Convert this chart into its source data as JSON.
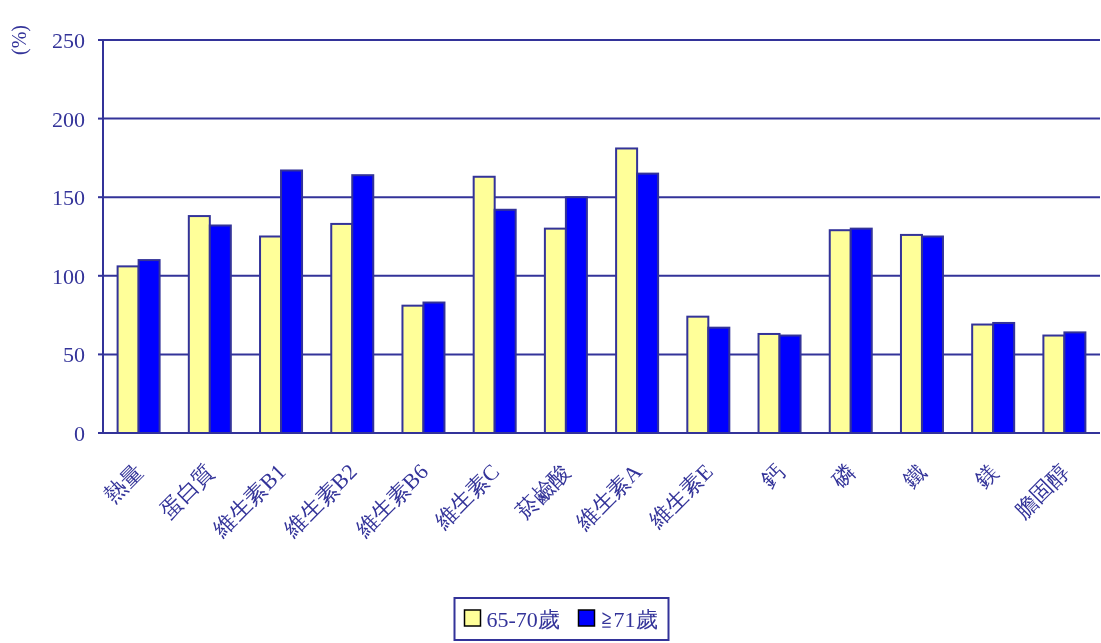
{
  "chart_data": {
    "type": "bar",
    "ylabel": "(%)",
    "categories": [
      "熱量",
      "蛋白質",
      "維生素B1",
      "維生素B2",
      "維生素B6",
      "維生素C",
      "菸鹼酸",
      "維生素A",
      "維生素E",
      "鈣",
      "磷",
      "鐵",
      "鎂",
      "膽固醇"
    ],
    "series": [
      {
        "name": "65-70歲",
        "color": "#ffff99",
        "values": [
          106,
          138,
          125,
          133,
          81,
          163,
          130,
          181,
          74,
          63,
          129,
          126,
          69,
          62
        ]
      },
      {
        "name": "≧71歲",
        "color": "#0000ff",
        "values": [
          110,
          132,
          167,
          164,
          83,
          142,
          150,
          165,
          67,
          62,
          130,
          125,
          70,
          64
        ]
      }
    ],
    "ylim": [
      0,
      250
    ],
    "yticks": [
      0,
      50,
      100,
      150,
      200,
      250
    ],
    "grid": "y",
    "legend": "bottom"
  }
}
